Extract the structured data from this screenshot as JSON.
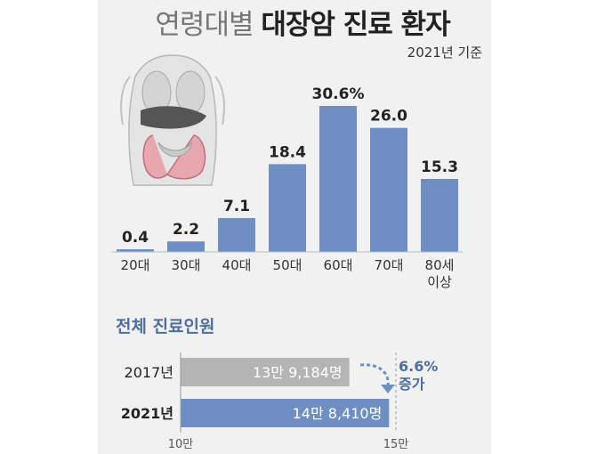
{
  "title": {
    "part1": "연령대별",
    "part2": "대장암 진료 환자"
  },
  "subtitle": "2021년 기준",
  "chart_data": [
    {
      "type": "bar",
      "title": "연령대별 대장암 진료 환자",
      "subtitle": "2021년 기준",
      "categories": [
        "20대",
        "30대",
        "40대",
        "50대",
        "60대",
        "70대",
        "80세 이상"
      ],
      "values": [
        0.4,
        2.2,
        7.1,
        18.4,
        30.6,
        26.0,
        15.3
      ],
      "value_labels": [
        "0.4",
        "2.2",
        "7.1",
        "18.4",
        "30.6%",
        "26.0",
        "15.3"
      ],
      "ylim": [
        0,
        30.6
      ],
      "grid": false,
      "bar_color": "#6f8fc2"
    },
    {
      "type": "bar",
      "orientation": "horizontal",
      "title": "전체 진료인원",
      "categories": [
        "2017년",
        "2021년"
      ],
      "values": [
        139184,
        148410
      ],
      "value_labels": [
        "13만 9,184명",
        "14만 8,410명"
      ],
      "xlim": [
        100000,
        150000
      ],
      "axis_labels": [
        "10만",
        "15만"
      ],
      "colors": [
        "#b4b4b4",
        "#6f8fc2"
      ],
      "annotation": {
        "value": "6.6%",
        "text": "증가"
      }
    }
  ]
}
